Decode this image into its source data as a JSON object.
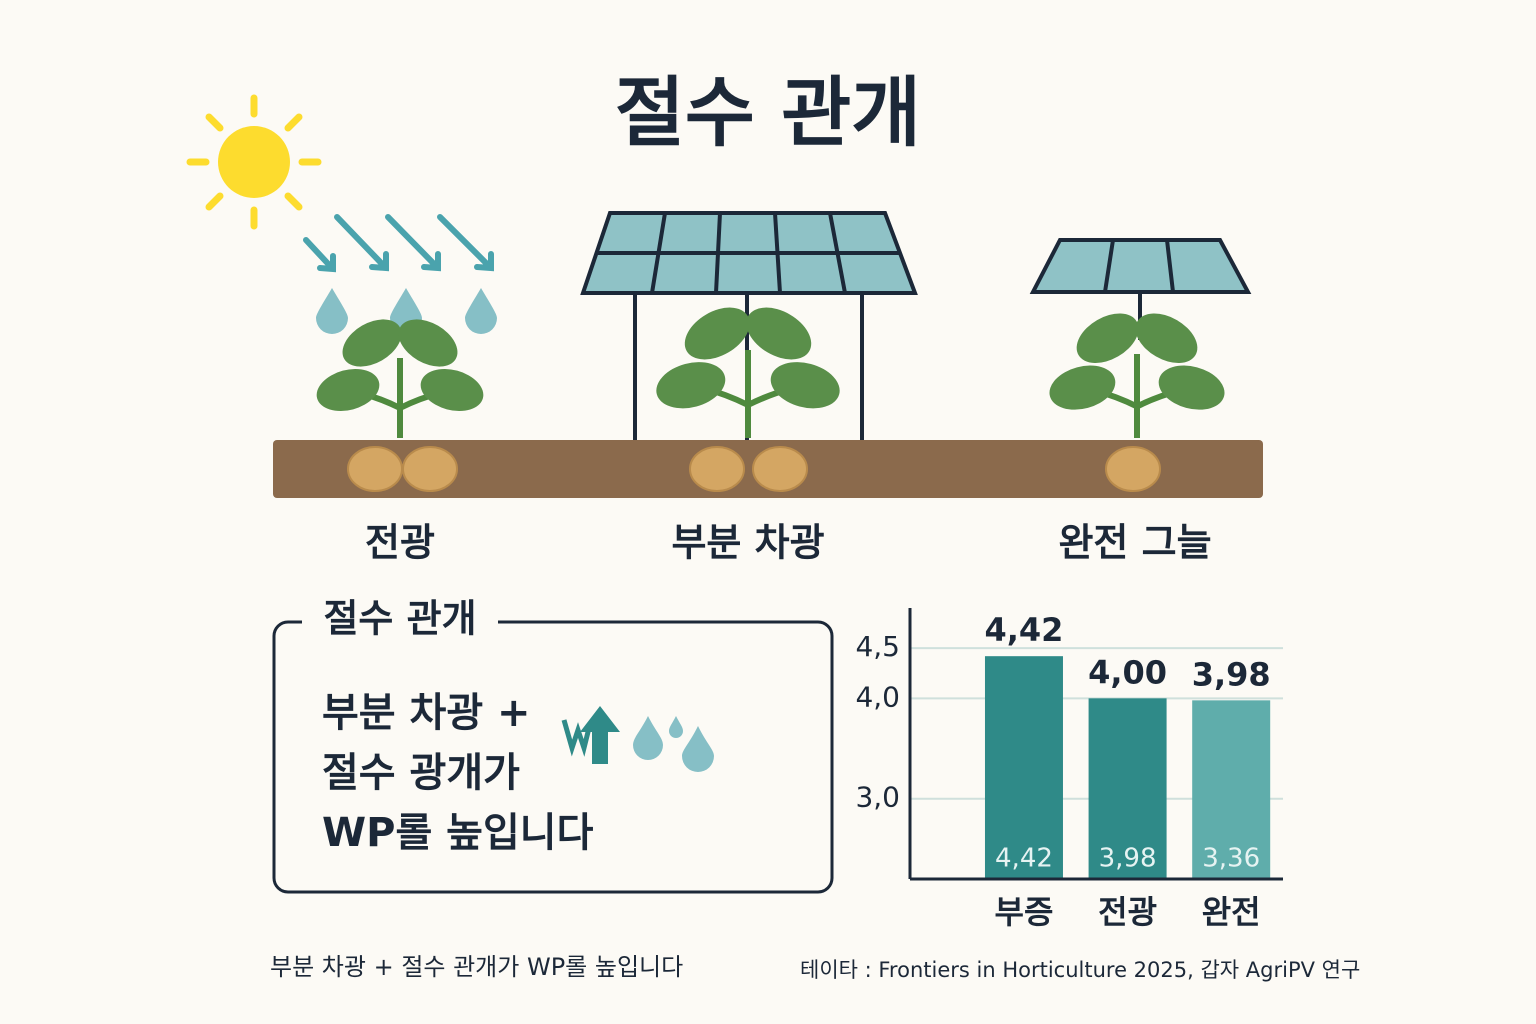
{
  "header": {
    "title": "절수 관개"
  },
  "scenes": [
    "전광",
    "부분 차광",
    "완전 그늘"
  ],
  "box": {
    "title": "절수 관개",
    "lines": [
      "부분 차광 +",
      "절수 광개가",
      "WP롤 높입니다"
    ]
  },
  "footer": {
    "left": "부분 차광 + 절수 관개가 WP롤 높입니다",
    "source": "테이타 : Frontiers in Horticulture 2025, 갑자 AgriPV 연구"
  },
  "chart_data": {
    "type": "bar",
    "categories": [
      "부증",
      "전광",
      "완전"
    ],
    "values": [
      4.42,
      4.0,
      3.98
    ],
    "value_labels": [
      "4,42",
      "4,00",
      "3,98"
    ],
    "inner_values": [
      4.42,
      3.98,
      3.36
    ],
    "inner_value_labels": [
      "4,42",
      "3,98",
      "3,36"
    ],
    "colors": [
      "#2f8a88",
      "#2f8a88",
      "#5fadab"
    ],
    "ylim": [
      2.2,
      4.9
    ],
    "yticks": [
      {
        "value": 4.5,
        "label": "4,5"
      },
      {
        "value": 4.0,
        "label": "4,0"
      },
      {
        "value": 3.0,
        "label": "3,0"
      }
    ],
    "grid": true
  }
}
